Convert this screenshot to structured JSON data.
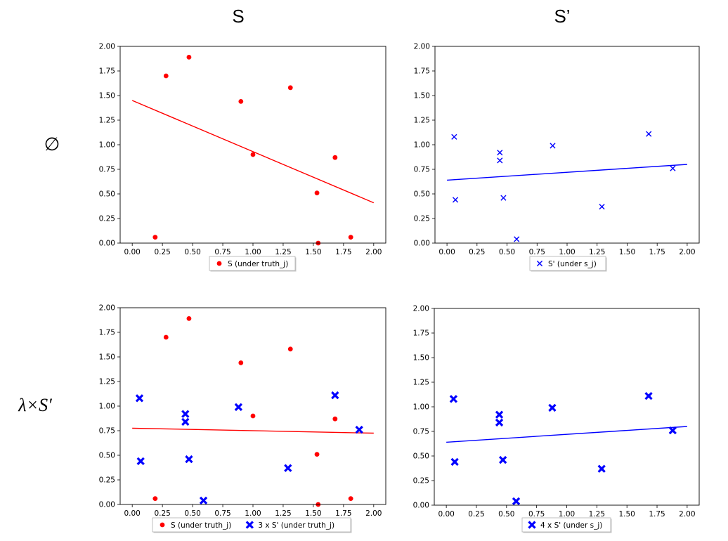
{
  "figure": {
    "col_titles": [
      "S",
      "S’"
    ],
    "row_titles": [
      "Ø",
      "λ×S′"
    ],
    "row_title_parts": [
      [
        "∅",
        ""
      ],
      [
        "λ×",
        "S′"
      ]
    ],
    "colors": {
      "red": "#ff0000",
      "blue": "#0000ff",
      "axis": "#000000"
    }
  },
  "chart_data": [
    {
      "type": "scatter",
      "panel": "top-left",
      "xlim": [
        -0.1,
        2.1
      ],
      "ylim": [
        0,
        2
      ],
      "xticks": [
        "0.00",
        "0.25",
        "0.50",
        "0.75",
        "1.00",
        "1.25",
        "1.50",
        "1.75",
        "2.00"
      ],
      "yticks": [
        "0.00",
        "0.25",
        "0.50",
        "0.75",
        "1.00",
        "1.25",
        "1.50",
        "1.75",
        "2.00"
      ],
      "series": [
        {
          "name": "S (under truth_j)",
          "marker": "dot",
          "color": "#ff0000",
          "x": [
            0.19,
            0.28,
            0.47,
            0.9,
            1.0,
            1.31,
            1.53,
            1.54,
            1.68,
            1.81
          ],
          "y": [
            0.06,
            1.7,
            1.89,
            1.44,
            0.9,
            1.58,
            0.51,
            0.0,
            0.87,
            0.06
          ]
        }
      ],
      "fit_lines": [
        {
          "color": "#ff0000",
          "x": [
            0,
            2
          ],
          "y": [
            1.45,
            0.41
          ]
        }
      ],
      "legend": {
        "placement": "below",
        "entries": [
          "S (under truth_j)"
        ]
      }
    },
    {
      "type": "scatter",
      "panel": "top-right",
      "xlim": [
        -0.1,
        2.1
      ],
      "ylim": [
        0,
        2
      ],
      "xticks": [
        "0.00",
        "0.25",
        "0.50",
        "0.75",
        "1.00",
        "1.25",
        "1.50",
        "1.75",
        "2.00"
      ],
      "yticks": [
        "0.00",
        "0.25",
        "0.50",
        "0.75",
        "1.00",
        "1.25",
        "1.50",
        "1.75",
        "2.00"
      ],
      "series": [
        {
          "name": "S' (under s_j)",
          "marker": "x",
          "color": "#0000ff",
          "x": [
            0.06,
            0.07,
            0.44,
            0.44,
            0.47,
            0.58,
            0.88,
            1.29,
            1.68,
            1.88
          ],
          "y": [
            1.08,
            0.44,
            0.92,
            0.84,
            0.46,
            0.04,
            0.99,
            0.37,
            1.11,
            0.76
          ]
        }
      ],
      "fit_lines": [
        {
          "color": "#0000ff",
          "x": [
            0,
            2
          ],
          "y": [
            0.64,
            0.8
          ]
        }
      ],
      "legend": {
        "placement": "below",
        "entries": [
          "S' (under s_j)"
        ]
      }
    },
    {
      "type": "scatter",
      "panel": "bottom-left",
      "xlim": [
        -0.1,
        2.1
      ],
      "ylim": [
        0,
        2
      ],
      "xticks": [
        "0.00",
        "0.25",
        "0.50",
        "0.75",
        "1.00",
        "1.25",
        "1.50",
        "1.75",
        "2.00"
      ],
      "yticks": [
        "0.00",
        "0.25",
        "0.50",
        "0.75",
        "1.00",
        "1.25",
        "1.50",
        "1.75",
        "2.00"
      ],
      "series": [
        {
          "name": "S (under truth_j)",
          "marker": "dot",
          "color": "#ff0000",
          "x": [
            0.19,
            0.28,
            0.47,
            0.9,
            1.0,
            1.31,
            1.53,
            1.54,
            1.68,
            1.81
          ],
          "y": [
            0.06,
            1.7,
            1.89,
            1.44,
            0.9,
            1.58,
            0.51,
            0.0,
            0.87,
            0.06
          ]
        },
        {
          "name": "3 x S' (under truth_j)",
          "marker": "thick-x",
          "color": "#0000ff",
          "x": [
            0.06,
            0.07,
            0.44,
            0.44,
            0.47,
            0.59,
            0.88,
            1.29,
            1.68,
            1.88
          ],
          "y": [
            1.08,
            0.44,
            0.92,
            0.84,
            0.46,
            0.04,
            0.99,
            0.37,
            1.11,
            0.76
          ]
        }
      ],
      "fit_lines": [
        {
          "color": "#ff0000",
          "x": [
            0,
            2
          ],
          "y": [
            0.775,
            0.725
          ]
        }
      ],
      "legend": {
        "placement": "below",
        "entries": [
          "S (under truth_j)",
          "3 x S' (under truth_j)"
        ]
      }
    },
    {
      "type": "scatter",
      "panel": "bottom-right",
      "xlim": [
        -0.1,
        2.1
      ],
      "ylim": [
        0,
        2
      ],
      "xticks": [
        "0.00",
        "0.25",
        "0.50",
        "0.75",
        "1.00",
        "1.25",
        "1.50",
        "1.75",
        "2.00"
      ],
      "yticks": [
        "0.00",
        "0.25",
        "0.50",
        "0.75",
        "1.00",
        "1.25",
        "1.50",
        "1.75",
        "2.00"
      ],
      "series": [
        {
          "name": "4 x S' (under s_j)",
          "marker": "thick-x",
          "color": "#0000ff",
          "x": [
            0.06,
            0.07,
            0.44,
            0.44,
            0.47,
            0.58,
            0.88,
            1.29,
            1.68,
            1.88
          ],
          "y": [
            1.08,
            0.44,
            0.92,
            0.84,
            0.46,
            0.04,
            0.99,
            0.37,
            1.11,
            0.76
          ]
        }
      ],
      "fit_lines": [
        {
          "color": "#0000ff",
          "x": [
            0,
            2
          ],
          "y": [
            0.64,
            0.8
          ]
        }
      ],
      "legend": {
        "placement": "below",
        "entries": [
          "4 x S' (under s_j)"
        ]
      }
    }
  ]
}
